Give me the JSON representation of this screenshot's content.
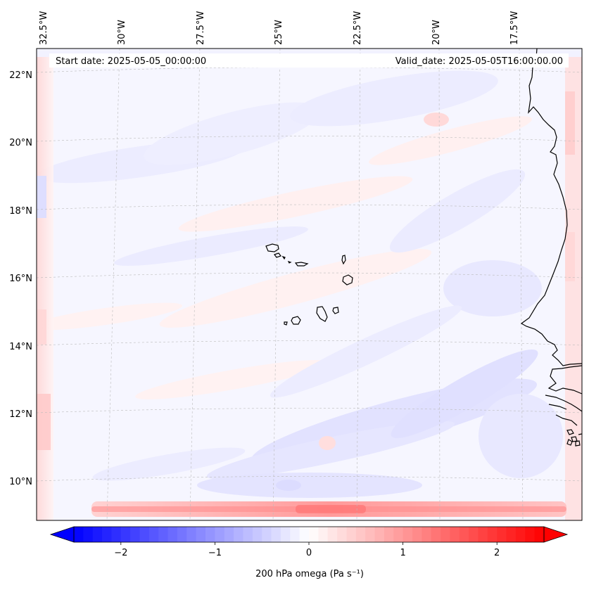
{
  "map": {
    "start_date": "Start date: 2025-05-05_00:00:00",
    "valid_date": "Valid_date: 2025-05-05T16:00:00.00",
    "lon_labels": [
      "32.5°W",
      "30°W",
      "27.5°W",
      "25°W",
      "22.5°W",
      "20°W",
      "17.5°W"
    ],
    "lat_labels": [
      "22°N",
      "20°N",
      "18°N",
      "16°N",
      "14°N",
      "12°N",
      "10°N"
    ],
    "islands": [
      "Santo Antão",
      "São Vicente",
      "Santa Luzia",
      "São Nicolau",
      "Sal",
      "Boa Vista",
      "Maio",
      "Santiago",
      "Fogo",
      "Brava"
    ]
  },
  "colorbar": {
    "label": "200 hPa omega (Pa s⁻¹)",
    "min": -2.5,
    "max": 2.5,
    "ticks": [
      {
        "value": -2,
        "label": "−2"
      },
      {
        "value": -1,
        "label": "−1"
      },
      {
        "value": 0,
        "label": "0"
      },
      {
        "value": 1,
        "label": "1"
      },
      {
        "value": 2,
        "label": "2"
      }
    ],
    "colormap": "bwr",
    "low_color": "#0000ff",
    "mid_color": "#ffffff",
    "high_color": "#ff0000"
  }
}
